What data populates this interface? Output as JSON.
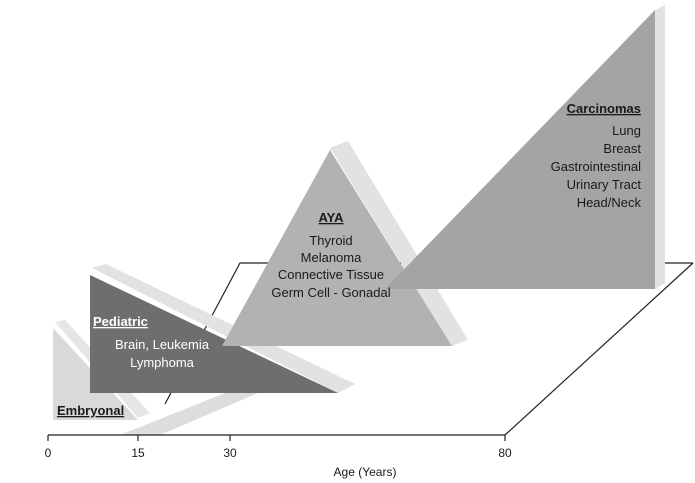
{
  "diagram": {
    "x_axis": {
      "label": "Age (Years)",
      "ticks": [
        "0",
        "15",
        "30",
        "80"
      ]
    },
    "groups": {
      "embryonal": {
        "title": "Embryonal",
        "items": []
      },
      "pediatric": {
        "title": "Pediatric",
        "items": [
          "Brain, Leukemia",
          "Lymphoma"
        ]
      },
      "aya": {
        "title": "AYA",
        "items": [
          "Thyroid",
          "Melanoma",
          "Connective Tissue",
          "Germ Cell - Gonadal"
        ]
      },
      "carcinomas": {
        "title": "Carcinomas",
        "items": [
          "Lung",
          "Breast",
          "Gastrointestinal",
          "Urinary Tract",
          "Head/Neck"
        ]
      }
    },
    "colors": {
      "embryonal": "#d9d9d9",
      "pediatric": "#6e6e6e",
      "aya": "#b2b2b2",
      "carcinomas": "#a4a4a4",
      "side_shadow": "#e4e4e4"
    }
  }
}
